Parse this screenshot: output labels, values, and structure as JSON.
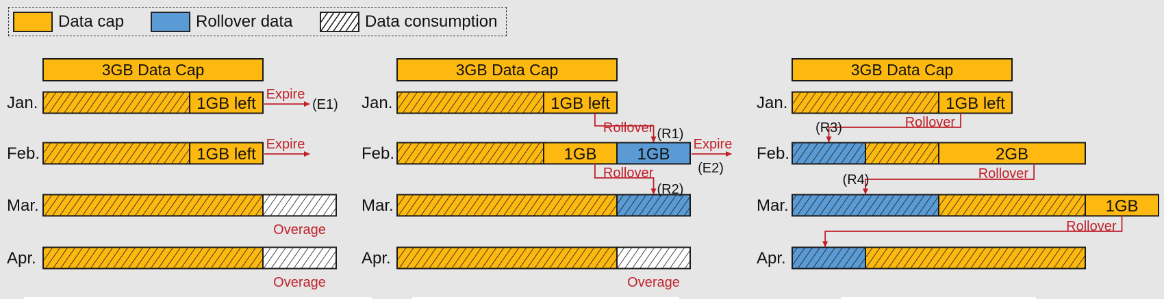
{
  "colors": {
    "cap": "#FDB90F",
    "rollover": "#5B9BD5",
    "consumption": "#FFFFFF",
    "annotation": "#C0202A",
    "outline": "#1a1a1a",
    "background": "#E6E6E6"
  },
  "legend": [
    {
      "label": "Data cap",
      "kind": "cap"
    },
    {
      "label": "Rollover data",
      "kind": "rollover"
    },
    {
      "label": "Data consumption",
      "kind": "consumption"
    }
  ],
  "months": [
    "Jan.",
    "Feb.",
    "Mar.",
    "Apr."
  ],
  "panels": [
    {
      "cap_label": "3GB Data Cap",
      "rows": [
        {
          "segments": [
            {
              "gb": 2,
              "fill": "cap",
              "hatch": true
            },
            {
              "gb": 1,
              "fill": "cap",
              "label": "1GB left"
            }
          ]
        },
        {
          "segments": [
            {
              "gb": 2,
              "fill": "cap",
              "hatch": true
            },
            {
              "gb": 1,
              "fill": "cap",
              "label": "1GB left"
            }
          ]
        },
        {
          "segments": [
            {
              "gb": 3,
              "fill": "cap",
              "hatch": true
            },
            {
              "gb": 1,
              "fill": "consumption",
              "hatch": true
            }
          ]
        },
        {
          "segments": [
            {
              "gb": 3,
              "fill": "cap",
              "hatch": true
            },
            {
              "gb": 1,
              "fill": "consumption",
              "hatch": true
            }
          ]
        }
      ],
      "annotations": [
        {
          "text": "Expire",
          "tag": "(E1)"
        },
        {
          "text": "Expire",
          "tag": ""
        },
        {
          "text": "Overage",
          "tag": ""
        },
        {
          "text": "Overage",
          "tag": ""
        }
      ]
    },
    {
      "cap_label": "3GB Data Cap",
      "rows": [
        {
          "segments": [
            {
              "gb": 2,
              "fill": "cap",
              "hatch": true
            },
            {
              "gb": 1,
              "fill": "cap",
              "label": "1GB left"
            }
          ]
        },
        {
          "segments": [
            {
              "gb": 2,
              "fill": "cap",
              "hatch": true
            },
            {
              "gb": 1,
              "fill": "cap",
              "label": "1GB"
            },
            {
              "gb": 1,
              "fill": "rollover",
              "label": "1GB"
            }
          ]
        },
        {
          "segments": [
            {
              "gb": 3,
              "fill": "cap",
              "hatch": true
            },
            {
              "gb": 1,
              "fill": "rollover",
              "hatch": true
            }
          ]
        },
        {
          "segments": [
            {
              "gb": 3,
              "fill": "cap",
              "hatch": true
            },
            {
              "gb": 1,
              "fill": "consumption",
              "hatch": true
            }
          ]
        }
      ],
      "annotations": [
        {
          "text": "Rollover",
          "tag": "(R1)"
        },
        {
          "text": "Expire",
          "tag": "(E2)"
        },
        {
          "text": "Rollover",
          "tag": "(R2)"
        },
        {
          "text": "Overage",
          "tag": ""
        }
      ]
    },
    {
      "cap_label": "3GB Data Cap",
      "rows": [
        {
          "segments": [
            {
              "gb": 2,
              "fill": "cap",
              "hatch": true
            },
            {
              "gb": 1,
              "fill": "cap",
              "label": "1GB left"
            }
          ]
        },
        {
          "segments": [
            {
              "gb": 1,
              "fill": "rollover",
              "hatch": true
            },
            {
              "gb": 1,
              "fill": "cap",
              "hatch": true
            },
            {
              "gb": 2,
              "fill": "cap",
              "label": "2GB"
            }
          ]
        },
        {
          "segments": [
            {
              "gb": 2,
              "fill": "rollover",
              "hatch": true
            },
            {
              "gb": 2,
              "fill": "cap",
              "hatch": true
            },
            {
              "gb": 1,
              "fill": "cap",
              "label": "1GB"
            }
          ]
        },
        {
          "segments": [
            {
              "gb": 1,
              "fill": "rollover",
              "hatch": true
            },
            {
              "gb": 3,
              "fill": "cap",
              "hatch": true
            }
          ]
        }
      ],
      "annotations": [
        {
          "text": "Rollover",
          "tag": "(R3)"
        },
        {
          "text": "Rollover",
          "tag": "(R4)"
        },
        {
          "text": "Rollover",
          "tag": ""
        }
      ]
    }
  ]
}
